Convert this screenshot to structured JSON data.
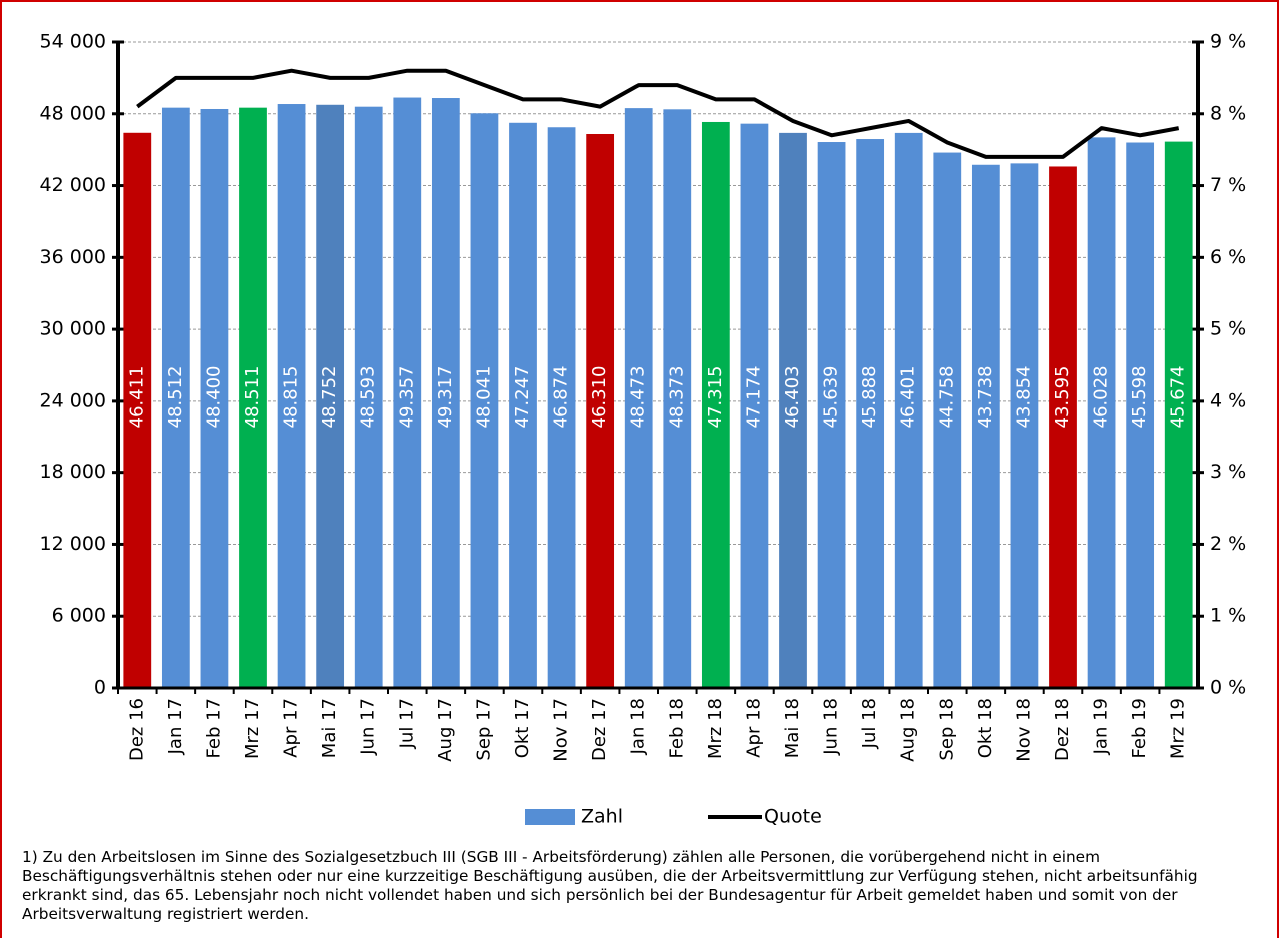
{
  "chart_data": {
    "type": "bar-line",
    "categories": [
      "Dez 16",
      "Jan 17",
      "Feb 17",
      "Mrz 17",
      "Apr 17",
      "Mai 17",
      "Jun 17",
      "Jul 17",
      "Aug 17",
      "Sep 17",
      "Okt 17",
      "Nov 17",
      "Dez 17",
      "Jan 18",
      "Feb 18",
      "Mrz 18",
      "Apr 18",
      "Mai 18",
      "Jun 18",
      "Jul 18",
      "Aug 18",
      "Sep 18",
      "Okt 18",
      "Nov 18",
      "Dez 18",
      "Jan 19",
      "Feb 19",
      "Mrz 19"
    ],
    "series": [
      {
        "name": "Zahl",
        "type": "bar",
        "color": "#558ed5",
        "colors": [
          "#c00000",
          "#558ed5",
          "#558ed5",
          "#00b050",
          "#558ed5",
          "#4f81bd",
          "#558ed5",
          "#558ed5",
          "#558ed5",
          "#558ed5",
          "#558ed5",
          "#558ed5",
          "#c00000",
          "#558ed5",
          "#558ed5",
          "#00b050",
          "#558ed5",
          "#4f81bd",
          "#558ed5",
          "#558ed5",
          "#558ed5",
          "#558ed5",
          "#558ed5",
          "#558ed5",
          "#c00000",
          "#558ed5",
          "#558ed5",
          "#00b050"
        ],
        "values": [
          46411,
          48512,
          48400,
          48511,
          48815,
          48752,
          48593,
          49357,
          49317,
          48041,
          47247,
          46874,
          46310,
          48473,
          48373,
          47315,
          47174,
          46403,
          45639,
          45888,
          46401,
          44758,
          43738,
          43854,
          43595,
          46028,
          45598,
          45674
        ],
        "value_labels": [
          "46.411",
          "48.512",
          "48.400",
          "48.511",
          "48.815",
          "48.752",
          "48.593",
          "49.357",
          "49.317",
          "48.041",
          "47.247",
          "46.874",
          "46.310",
          "48.473",
          "48.373",
          "47.315",
          "47.174",
          "46.403",
          "45.639",
          "45.888",
          "46.401",
          "44.758",
          "43.738",
          "43.854",
          "43.595",
          "46.028",
          "45.598",
          "45.674"
        ]
      },
      {
        "name": "Quote",
        "type": "line",
        "axis": "y2",
        "color": "#000000",
        "values": [
          8.1,
          8.5,
          8.5,
          8.5,
          8.6,
          8.5,
          8.5,
          8.6,
          8.6,
          8.4,
          8.2,
          8.2,
          8.1,
          8.4,
          8.4,
          8.2,
          8.2,
          7.9,
          7.7,
          7.8,
          7.9,
          7.6,
          7.4,
          7.4,
          7.4,
          7.8,
          7.7,
          7.8
        ]
      }
    ],
    "ylim": [
      0,
      54000
    ],
    "yticks": [
      {
        "value": 0,
        "label": "0"
      },
      {
        "value": 6000,
        "label": "6 000"
      },
      {
        "value": 12000,
        "label": "12 000"
      },
      {
        "value": 18000,
        "label": "18 000"
      },
      {
        "value": 24000,
        "label": "24 000"
      },
      {
        "value": 30000,
        "label": "30 000"
      },
      {
        "value": 36000,
        "label": "36 000"
      },
      {
        "value": 42000,
        "label": "42 000"
      },
      {
        "value": 48000,
        "label": "48 000"
      },
      {
        "value": 54000,
        "label": "54 000"
      }
    ],
    "y2lim": [
      0,
      9
    ],
    "y2ticks": [
      {
        "value": 0,
        "label": "0 %"
      },
      {
        "value": 1,
        "label": "1 %"
      },
      {
        "value": 2,
        "label": "2 %"
      },
      {
        "value": 3,
        "label": "3 %"
      },
      {
        "value": 4,
        "label": "4 %"
      },
      {
        "value": 5,
        "label": "5 %"
      },
      {
        "value": 6,
        "label": "6 %"
      },
      {
        "value": 7,
        "label": "7 %"
      },
      {
        "value": 8,
        "label": "8 %"
      },
      {
        "value": 9,
        "label": "9 %"
      }
    ],
    "grid": true,
    "legend": "bottom",
    "footnote": "1) Zu den Arbeitslosen im Sinne des Sozialgesetzbuch III (SGB III - Arbeitsförderung) zählen alle Personen, die vorübergehend nicht in einem Beschäftigungsverhältnis stehen oder nur eine kurzzeitige Beschäftigung ausüben, die der Arbeitsvermittlung zur Verfügung stehen, nicht arbeitsunfähig erkrankt sind, das 65. Lebensjahr noch nicht vollendet haben und sich persönlich bei der Bundesagentur für Arbeit gemeldet haben und somit von der Arbeitsverwaltung registriert werden."
  }
}
